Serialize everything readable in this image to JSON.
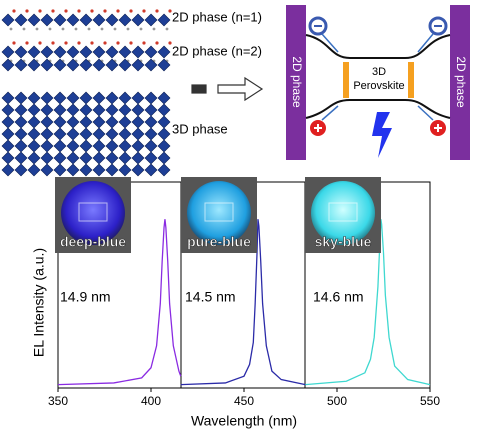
{
  "diagram": {
    "layer_labels": [
      "2D phase (n=1)",
      "2D phase (n=2)",
      "3D phase"
    ],
    "left_bar": "2D phase",
    "right_bar": "2D phase",
    "center": [
      "3D",
      "Perovskite"
    ]
  },
  "chart_data": {
    "type": "line",
    "xlabel": "Wavelength (nm)",
    "ylabel": "EL Intensity (a.u.)",
    "xlim": [
      350,
      550
    ],
    "xticks": [
      350,
      400,
      450,
      500,
      550
    ],
    "ylim": [
      0,
      1.25
    ],
    "series": [
      {
        "name": "deep-blue",
        "color": "#8a2be2",
        "x": [
          350,
          380,
          395,
          400,
          403,
          405,
          406,
          407,
          407.5,
          408,
          409,
          410,
          412,
          415,
          416
        ],
        "values": [
          0.02,
          0.03,
          0.06,
          0.12,
          0.25,
          0.5,
          0.75,
          0.95,
          1.0,
          0.95,
          0.75,
          0.5,
          0.25,
          0.1,
          0.07
        ]
      },
      {
        "name": "pure-blue",
        "color": "#2b2ba8",
        "x": [
          416,
          440,
          450,
          453,
          455,
          456,
          457,
          457.5,
          458,
          459,
          460,
          462,
          465,
          470,
          483
        ],
        "values": [
          0.02,
          0.03,
          0.07,
          0.14,
          0.27,
          0.5,
          0.8,
          1.0,
          0.96,
          0.75,
          0.5,
          0.25,
          0.1,
          0.05,
          0.02
        ]
      },
      {
        "name": "sky-blue",
        "color": "#3fd8d0",
        "x": [
          483,
          505,
          515,
          518,
          520,
          522,
          523,
          523.6,
          524,
          525,
          526,
          528,
          531,
          538,
          550
        ],
        "values": [
          0.02,
          0.04,
          0.09,
          0.17,
          0.3,
          0.6,
          0.85,
          1.0,
          0.97,
          0.8,
          0.55,
          0.3,
          0.13,
          0.05,
          0.02
        ]
      }
    ],
    "annotations": [
      "14.9 nm",
      "14.5 nm",
      "14.6 nm"
    ]
  }
}
